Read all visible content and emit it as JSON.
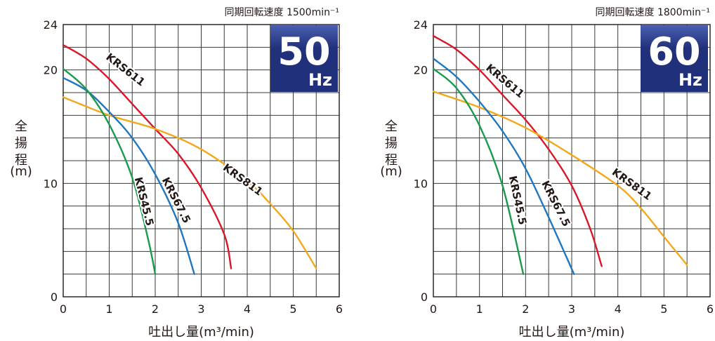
{
  "colors": {
    "KRS611": "#d7182a",
    "KRS811": "#f2a81d",
    "KRS67.5": "#1f77c0",
    "KRS45.5": "#1a9a4e",
    "badge_bg": "#21307a",
    "badge_edge": "#4a5fb0"
  },
  "chart_data": [
    {
      "type": "line",
      "speed_text": "同期回転速度 1500min⁻¹",
      "badge_number": "50",
      "badge_unit": "Hz",
      "ylabel_chars": [
        "全",
        "揚",
        "程"
      ],
      "ylabel_unit": "(m)",
      "xlabel": "吐出し量(m³/min)",
      "xlim": [
        0,
        6
      ],
      "ylim": [
        0,
        24
      ],
      "x_ticks": [
        "0",
        "1",
        "2",
        "3",
        "4",
        "5",
        "6"
      ],
      "y_ticks": [
        {
          "v": 0,
          "label": "0"
        },
        {
          "v": 10,
          "label": "10"
        },
        {
          "v": 20,
          "label": "20"
        },
        {
          "v": 24,
          "label": "24"
        }
      ],
      "grid": true,
      "series": [
        {
          "name": "KRS611",
          "points": [
            [
              0,
              22.2
            ],
            [
              0.5,
              21.0
            ],
            [
              1.0,
              19.2
            ],
            [
              1.5,
              17.0
            ],
            [
              2.0,
              14.8
            ],
            [
              2.5,
              12.6
            ],
            [
              3.0,
              9.6
            ],
            [
              3.5,
              5.5
            ],
            [
              3.65,
              2.5
            ]
          ],
          "label": {
            "at": [
              1.35,
              20.0
            ],
            "angle": 38
          }
        },
        {
          "name": "KRS811",
          "points": [
            [
              0,
              17.6
            ],
            [
              1.0,
              16.0
            ],
            [
              2.0,
              14.8
            ],
            [
              3.0,
              13.0
            ],
            [
              4.0,
              10.2
            ],
            [
              4.5,
              8.2
            ],
            [
              5.0,
              5.8
            ],
            [
              5.5,
              2.5
            ]
          ],
          "label": {
            "at": [
              3.9,
              10.3
            ],
            "angle": 36
          }
        },
        {
          "name": "KRS67.5",
          "points": [
            [
              0,
              19.3
            ],
            [
              0.5,
              18.2
            ],
            [
              1.0,
              16.3
            ],
            [
              1.5,
              14.0
            ],
            [
              2.0,
              10.8
            ],
            [
              2.5,
              6.5
            ],
            [
              2.85,
              2.0
            ]
          ],
          "label": {
            "at": [
              2.45,
              8.5
            ],
            "angle": 63
          }
        },
        {
          "name": "KRS45.5",
          "points": [
            [
              0,
              20.1
            ],
            [
              0.5,
              18.3
            ],
            [
              1.0,
              15.2
            ],
            [
              1.5,
              10.5
            ],
            [
              1.85,
              5.0
            ],
            [
              2.0,
              2.0
            ]
          ],
          "label": {
            "at": [
              1.75,
              8.4
            ],
            "angle": 76
          }
        }
      ]
    },
    {
      "type": "line",
      "speed_text": "同期回転速度 1800min⁻¹",
      "badge_number": "60",
      "badge_unit": "Hz",
      "ylabel_chars": [
        "全",
        "揚",
        "程"
      ],
      "ylabel_unit": "(m)",
      "xlabel": "吐出し量(m³/min)",
      "xlim": [
        0,
        6
      ],
      "ylim": [
        0,
        24
      ],
      "x_ticks": [
        "0",
        "1",
        "2",
        "3",
        "4",
        "5",
        "6"
      ],
      "y_ticks": [
        {
          "v": 0,
          "label": "0"
        },
        {
          "v": 10,
          "label": "10"
        },
        {
          "v": 20,
          "label": "20"
        },
        {
          "v": 24,
          "label": "24"
        }
      ],
      "grid": true,
      "series": [
        {
          "name": "KRS611",
          "points": [
            [
              0,
              23.0
            ],
            [
              0.5,
              21.8
            ],
            [
              1.0,
              20.0
            ],
            [
              1.5,
              17.8
            ],
            [
              2.0,
              15.6
            ],
            [
              2.5,
              13.0
            ],
            [
              3.0,
              9.8
            ],
            [
              3.4,
              6.0
            ],
            [
              3.65,
              2.7
            ]
          ],
          "label": {
            "at": [
              1.55,
              19.0
            ],
            "angle": 40
          }
        },
        {
          "name": "KRS811",
          "points": [
            [
              0,
              18.1
            ],
            [
              1.0,
              16.7
            ],
            [
              2.0,
              14.9
            ],
            [
              3.0,
              12.5
            ],
            [
              4.0,
              9.8
            ],
            [
              4.5,
              7.8
            ],
            [
              5.0,
              5.3
            ],
            [
              5.5,
              2.8
            ]
          ],
          "label": {
            "at": [
              4.3,
              9.9
            ],
            "angle": 36
          }
        },
        {
          "name": "KRS67.5",
          "points": [
            [
              0,
              21.0
            ],
            [
              0.5,
              19.4
            ],
            [
              1.0,
              17.2
            ],
            [
              1.5,
              14.6
            ],
            [
              2.0,
              11.3
            ],
            [
              2.5,
              7.0
            ],
            [
              3.05,
              2.0
            ]
          ],
          "label": {
            "at": [
              2.65,
              8.2
            ],
            "angle": 63
          }
        },
        {
          "name": "KRS45.5",
          "points": [
            [
              0,
              20.1
            ],
            [
              0.5,
              18.4
            ],
            [
              1.0,
              15.1
            ],
            [
              1.5,
              9.8
            ],
            [
              1.95,
              2.0
            ]
          ],
          "label": {
            "at": [
              1.82,
              8.5
            ],
            "angle": 78
          }
        }
      ]
    }
  ]
}
